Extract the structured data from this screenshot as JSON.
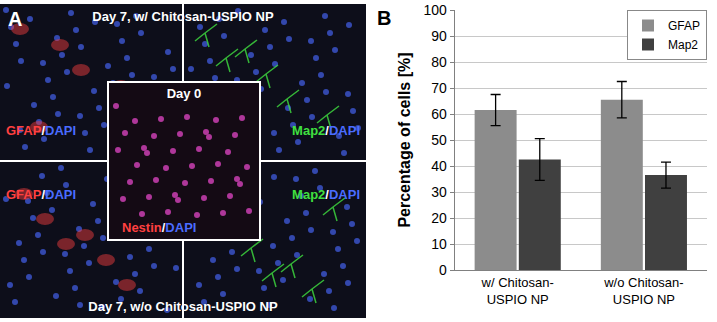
{
  "image_panel": {
    "label": "A",
    "top_caption": "Day 7, w/ Chitosan-USPIO NP",
    "bottom_caption": "Day 7, w/o Chitosan-USPIO NP",
    "inset": {
      "title": "Day 0",
      "stain": {
        "parts": [
          "Nestin",
          "/",
          "DAPI"
        ],
        "colors": [
          "#ff4040",
          "#ffffff",
          "#4a6cff"
        ]
      }
    },
    "quadrants": [
      {
        "stain": {
          "parts": [
            "GFAP",
            "/",
            "DAPI"
          ],
          "colors": [
            "#ff4040",
            "#ffffff",
            "#4a6cff"
          ]
        }
      },
      {
        "stain": {
          "parts": [
            "Map2",
            "/",
            "DAPI"
          ],
          "colors": [
            "#40e040",
            "#ffffff",
            "#4a6cff"
          ]
        }
      },
      {
        "stain": {
          "parts": [
            "GFAP",
            "/",
            "DAPI"
          ],
          "colors": [
            "#ff4040",
            "#ffffff",
            "#4a6cff"
          ]
        }
      },
      {
        "stain": {
          "parts": [
            "Map2",
            "/",
            "DAPI"
          ],
          "colors": [
            "#40e040",
            "#ffffff",
            "#4a6cff"
          ]
        }
      }
    ]
  },
  "chart_data": {
    "type": "bar",
    "annotations": [
      {
        "text": "B"
      }
    ],
    "y_label": "Percentage of cells [%]",
    "categories": [
      "w/ Chitosan-USPIO NP",
      "w/o Chitosan-USPIO NP"
    ],
    "series": [
      {
        "name": "GFAP",
        "color": "#8c8c8c",
        "values": [
          61.5,
          65.5
        ],
        "errors": [
          6,
          7
        ]
      },
      {
        "name": "Map2",
        "color": "#404040",
        "values": [
          42.5,
          36.5
        ],
        "errors": [
          8,
          5
        ]
      }
    ],
    "ylim": [
      0,
      100
    ],
    "yticks": [
      0,
      10,
      20,
      30,
      40,
      50,
      60,
      70,
      80,
      90,
      100
    ],
    "grid": true,
    "legend": "top right"
  }
}
